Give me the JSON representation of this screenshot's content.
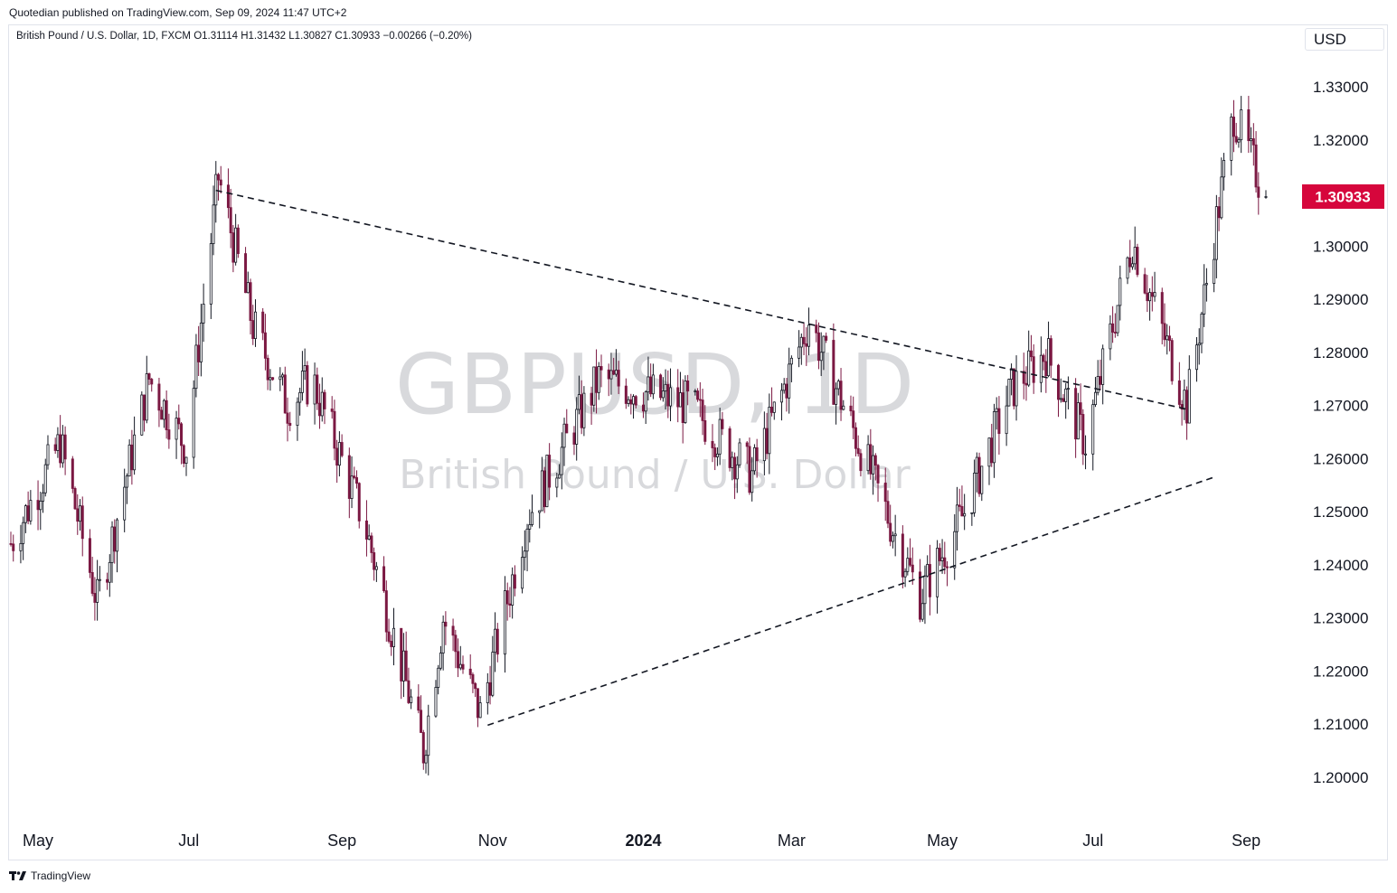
{
  "header": {
    "publisher_line": "Quotedian published on TradingView.com, Sep 09, 2024 11:47 UTC+2",
    "legend_line": "British Pound / U.S. Dollar, 1D, FXCM  O1.31114  H1.31432  L1.30827  C1.30933  −0.00266 (−0.20%)",
    "currency": "USD"
  },
  "footer": {
    "logo_text": "TradingView",
    "logo_icon": "tradingview-logo-icon"
  },
  "chart_data": {
    "type": "candlestick",
    "symbol": "GBPUSD, 1D",
    "watermark_title": "GBPUSD, 1D",
    "watermark_subtitle": "British Pound / U.S. Dollar",
    "ohlc_last": {
      "open": 1.31114,
      "high": 1.31432,
      "low": 1.30827,
      "close": 1.30933,
      "change": -0.00266,
      "change_pct": -0.2
    },
    "last_price_label": "1.30933",
    "y_ticks": [
      "1.33000",
      "1.32000",
      "1.30000",
      "1.29000",
      "1.28000",
      "1.27000",
      "1.26000",
      "1.25000",
      "1.24000",
      "1.23000",
      "1.22000",
      "1.21000",
      "1.20000"
    ],
    "x_ticks": [
      "May",
      "Jul",
      "Sep",
      "Nov",
      "2024",
      "Mar",
      "May",
      "Jul",
      "Sep"
    ],
    "x_range": [
      "2023-04-20",
      "2024-09-20"
    ],
    "colors": {
      "up": "#ffffff",
      "down": "#7b1842",
      "wick": "#131722",
      "up_border": "#131722",
      "last_price": "#d6063c"
    },
    "trendlines": [
      {
        "style": "dashed",
        "points": [
          [
            "2023-07-12",
            1.3105
          ],
          [
            "2024-08-08",
            1.2693
          ]
        ]
      },
      {
        "style": "dashed",
        "points": [
          [
            "2023-10-30",
            1.2098
          ],
          [
            "2024-08-19",
            1.2565
          ]
        ]
      }
    ],
    "price_path": [
      [
        "2023-04-20",
        1.244
      ],
      [
        "2023-05-10",
        1.263
      ],
      [
        "2023-05-25",
        1.233
      ],
      [
        "2023-06-15",
        1.275
      ],
      [
        "2023-06-30",
        1.262
      ],
      [
        "2023-07-13",
        1.313
      ],
      [
        "2023-07-27",
        1.285
      ],
      [
        "2023-08-10",
        1.27
      ],
      [
        "2023-08-20",
        1.275
      ],
      [
        "2023-09-10",
        1.248
      ],
      [
        "2023-10-04",
        1.205
      ],
      [
        "2023-10-12",
        1.23
      ],
      [
        "2023-10-27",
        1.212
      ],
      [
        "2023-11-15",
        1.249
      ],
      [
        "2023-12-14",
        1.275
      ],
      [
        "2023-12-29",
        1.273
      ],
      [
        "2024-01-20",
        1.27
      ],
      [
        "2024-02-14",
        1.257
      ],
      [
        "2024-03-08",
        1.286
      ],
      [
        "2024-03-29",
        1.262
      ],
      [
        "2024-04-22",
        1.234
      ],
      [
        "2024-05-10",
        1.25
      ],
      [
        "2024-05-29",
        1.273
      ],
      [
        "2024-06-12",
        1.28
      ],
      [
        "2024-06-28",
        1.263
      ],
      [
        "2024-07-17",
        1.301
      ],
      [
        "2024-08-08",
        1.27
      ],
      [
        "2024-08-27",
        1.325
      ],
      [
        "2024-09-09",
        1.309
      ]
    ]
  }
}
